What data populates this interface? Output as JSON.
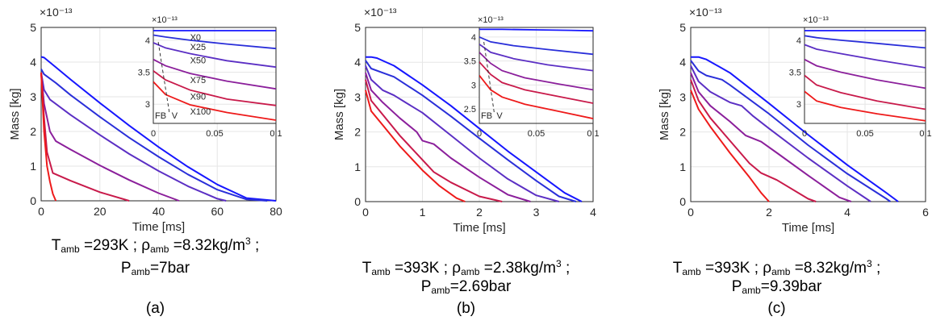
{
  "series_colors": [
    "#1616ff",
    "#2a2fd9",
    "#5b2fc4",
    "#8b1f9b",
    "#c81a4a",
    "#ee1a1a"
  ],
  "chart_data": [
    {
      "type": "line",
      "xlabel": "Time [ms]",
      "ylabel": "Mass [kg]",
      "y_exponent": "×10⁻¹³",
      "xlim": [
        0,
        80
      ],
      "ylim": [
        0,
        5
      ],
      "xticks": [
        "0",
        "20",
        "40",
        "60",
        "80"
      ],
      "yticks": [
        "0",
        "1",
        "2",
        "3",
        "4",
        "5"
      ],
      "grid": true,
      "series": [
        {
          "x": [
            0,
            1,
            5,
            10,
            20,
            30,
            40,
            50,
            60,
            70,
            80
          ],
          "y": [
            4.15,
            4.13,
            3.85,
            3.5,
            2.82,
            2.17,
            1.55,
            0.98,
            0.47,
            0.08,
            0.0
          ]
        },
        {
          "x": [
            0,
            1,
            5,
            10,
            20,
            30,
            40,
            50,
            60,
            70,
            77
          ],
          "y": [
            3.8,
            3.65,
            3.4,
            3.05,
            2.42,
            1.82,
            1.27,
            0.76,
            0.32,
            0.04,
            0.0
          ]
        },
        {
          "x": [
            0,
            1,
            3,
            10,
            20,
            30,
            40,
            50,
            60,
            63
          ],
          "y": [
            3.7,
            3.2,
            2.92,
            2.48,
            1.9,
            1.35,
            0.86,
            0.42,
            0.06,
            0.0
          ]
        },
        {
          "x": [
            0,
            1,
            3,
            5,
            10,
            20,
            30,
            40,
            47
          ],
          "y": [
            3.7,
            2.8,
            2.0,
            1.72,
            1.48,
            1.02,
            0.6,
            0.22,
            0.0
          ]
        },
        {
          "x": [
            0,
            1,
            2,
            4,
            10,
            20,
            30
          ],
          "y": [
            3.7,
            2.4,
            1.4,
            0.8,
            0.58,
            0.25,
            0.0
          ]
        },
        {
          "x": [
            0,
            1,
            2,
            3,
            4,
            5
          ],
          "y": [
            3.7,
            2.0,
            1.0,
            0.55,
            0.2,
            0.0
          ]
        }
      ],
      "inset": {
        "xlim": [
          0,
          0.1
        ],
        "ylim": [
          2.7,
          4.2
        ],
        "xticks": [
          "0",
          "0.05",
          "0.1"
        ],
        "yticks": [
          "3",
          "3.5",
          "4"
        ],
        "y_exponent": "×10⁻¹³",
        "labels": [
          "X0",
          "X25",
          "X50",
          "X75",
          "X90",
          "X100"
        ],
        "fb_label": "FB",
        "v_label": "V",
        "series": [
          {
            "x": [
              0,
              0.02,
              0.05,
              0.08,
              0.1
            ],
            "y": [
              4.15,
              4.15,
              4.15,
              4.15,
              4.15
            ]
          },
          {
            "x": [
              0,
              0.01,
              0.03,
              0.06,
              0.1
            ],
            "y": [
              4.08,
              4.05,
              4.0,
              3.94,
              3.87
            ]
          },
          {
            "x": [
              0,
              0.01,
              0.03,
              0.06,
              0.1
            ],
            "y": [
              3.96,
              3.88,
              3.79,
              3.68,
              3.58
            ]
          },
          {
            "x": [
              0,
              0.01,
              0.03,
              0.06,
              0.1
            ],
            "y": [
              3.7,
              3.6,
              3.48,
              3.36,
              3.24
            ]
          },
          {
            "x": [
              0,
              0.01,
              0.03,
              0.06,
              0.1
            ],
            "y": [
              3.52,
              3.38,
              3.22,
              3.08,
              2.98
            ]
          },
          {
            "x": [
              0,
              0.01,
              0.03,
              0.06,
              0.1
            ],
            "y": [
              3.35,
              3.15,
              2.99,
              2.87,
              2.75
            ]
          }
        ]
      },
      "caption": {
        "t_main": "T",
        "t_sub": "amb",
        "t_val": " =293K ; ρ",
        "rho_sub": "amb",
        "rho_val": " =8.32kg/m",
        "rho_sup": "3",
        "sep": " ;",
        "p_main": "P",
        "p_sub": "amb",
        "p_val": "=7bar",
        "letter": "(a)"
      }
    },
    {
      "type": "line",
      "xlabel": "Time [ms]",
      "ylabel": "Mass [kg]",
      "y_exponent": "×10⁻¹³",
      "xlim": [
        0,
        4
      ],
      "ylim": [
        0,
        5
      ],
      "xticks": [
        "0",
        "1",
        "2",
        "3",
        "4"
      ],
      "yticks": [
        "0",
        "1",
        "2",
        "3",
        "4",
        "5"
      ],
      "grid": true,
      "series": [
        {
          "x": [
            0,
            0.1,
            0.2,
            0.5,
            1.0,
            1.5,
            2.0,
            2.5,
            3.0,
            3.5,
            3.8
          ],
          "y": [
            4.15,
            4.15,
            4.12,
            3.9,
            3.35,
            2.75,
            2.1,
            1.45,
            0.85,
            0.25,
            0.0
          ]
        },
        {
          "x": [
            0,
            0.1,
            0.3,
            0.5,
            1.0,
            1.5,
            2.0,
            2.5,
            3.0,
            3.4,
            3.7
          ],
          "y": [
            4.05,
            3.82,
            3.7,
            3.58,
            3.05,
            2.45,
            1.82,
            1.2,
            0.6,
            0.15,
            0.0
          ]
        },
        {
          "x": [
            0,
            0.1,
            0.3,
            0.5,
            0.7,
            1.0,
            1.5,
            2.0,
            2.5,
            3.0,
            3.4
          ],
          "y": [
            3.9,
            3.5,
            3.2,
            3.05,
            2.85,
            2.55,
            1.9,
            1.25,
            0.65,
            0.18,
            0.0
          ]
        },
        {
          "x": [
            0,
            0.1,
            0.3,
            0.6,
            0.9,
            1.0,
            1.2,
            1.5,
            2.0,
            2.5,
            2.9
          ],
          "y": [
            3.7,
            3.2,
            2.85,
            2.4,
            2.0,
            1.75,
            1.65,
            1.25,
            0.7,
            0.2,
            0.0
          ]
        },
        {
          "x": [
            0,
            0.1,
            0.3,
            0.6,
            1.0,
            1.2,
            1.3,
            1.5,
            2.0,
            2.4
          ],
          "y": [
            3.5,
            2.9,
            2.5,
            1.9,
            1.2,
            0.85,
            0.75,
            0.55,
            0.15,
            0.0
          ]
        },
        {
          "x": [
            0,
            0.1,
            0.3,
            0.6,
            1.0,
            1.3,
            1.6,
            1.75
          ],
          "y": [
            3.2,
            2.6,
            2.2,
            1.6,
            0.9,
            0.45,
            0.1,
            0.0
          ]
        }
      ],
      "inset": {
        "xlim": [
          0,
          0.1
        ],
        "ylim": [
          2.2,
          4.2
        ],
        "xticks": [
          "0",
          "0.05",
          "0.1"
        ],
        "yticks": [
          "2.5",
          "3",
          "3.5",
          "4"
        ],
        "y_exponent": "×10⁻¹³",
        "labels": [],
        "fb_label": "FB",
        "v_label": "V",
        "series": [
          {
            "x": [
              0,
              0.02,
              0.05,
              0.08,
              0.1
            ],
            "y": [
              4.16,
              4.16,
              4.15,
              4.14,
              4.13
            ]
          },
          {
            "x": [
              0,
              0.01,
              0.03,
              0.06,
              0.1
            ],
            "y": [
              4.0,
              3.9,
              3.82,
              3.74,
              3.64
            ]
          },
          {
            "x": [
              0,
              0.01,
              0.03,
              0.06,
              0.1
            ],
            "y": [
              3.85,
              3.68,
              3.55,
              3.42,
              3.3
            ]
          },
          {
            "x": [
              0,
              0.01,
              0.02,
              0.04,
              0.07,
              0.1
            ],
            "y": [
              3.68,
              3.45,
              3.3,
              3.15,
              3.02,
              2.9
            ]
          },
          {
            "x": [
              0,
              0.01,
              0.02,
              0.04,
              0.07,
              0.1
            ],
            "y": [
              3.48,
              3.22,
              3.05,
              2.9,
              2.76,
              2.62
            ]
          },
          {
            "x": [
              0,
              0.01,
              0.02,
              0.04,
              0.07,
              0.1
            ],
            "y": [
              3.2,
              2.9,
              2.75,
              2.6,
              2.45,
              2.3
            ]
          }
        ]
      },
      "caption": {
        "t_main": "T",
        "t_sub": "amb",
        "t_val": " =393K ; ρ",
        "rho_sub": "amb",
        "rho_val": " =2.38kg/m",
        "rho_sup": "3",
        "sep": " ;",
        "p_main": "P",
        "p_sub": "amb",
        "p_val": "=2.69bar",
        "letter": "(b)"
      }
    },
    {
      "type": "line",
      "xlabel": "Time [ms]",
      "ylabel": "Mass [kg]",
      "y_exponent": "×10⁻¹³",
      "xlim": [
        0,
        6
      ],
      "ylim": [
        0,
        5
      ],
      "xticks": [
        "0",
        "2",
        "4",
        "6"
      ],
      "yticks": [
        "0",
        "1",
        "2",
        "3",
        "4",
        "5"
      ],
      "grid": true,
      "series": [
        {
          "x": [
            0,
            0.2,
            0.4,
            1.0,
            2.0,
            3.0,
            4.0,
            5.0,
            5.3
          ],
          "y": [
            4.15,
            4.15,
            4.08,
            3.7,
            2.82,
            1.92,
            1.05,
            0.25,
            0.0
          ]
        },
        {
          "x": [
            0,
            0.2,
            0.4,
            0.8,
            1.0,
            2.0,
            3.0,
            4.0,
            5.0,
            5.1
          ],
          "y": [
            4.05,
            3.75,
            3.62,
            3.5,
            3.35,
            2.52,
            1.62,
            0.8,
            0.08,
            0.0
          ]
        },
        {
          "x": [
            0,
            0.2,
            0.5,
            1.0,
            1.3,
            1.6,
            2.0,
            3.0,
            4.0,
            4.6
          ],
          "y": [
            3.9,
            3.45,
            3.15,
            2.85,
            2.75,
            2.45,
            2.1,
            1.25,
            0.45,
            0.0
          ]
        },
        {
          "x": [
            0,
            0.2,
            0.5,
            1.0,
            1.4,
            1.8,
            2.2,
            3.0,
            3.8,
            4.1
          ],
          "y": [
            3.7,
            3.15,
            2.75,
            2.3,
            1.9,
            1.72,
            1.4,
            0.75,
            0.12,
            0.0
          ]
        },
        {
          "x": [
            0,
            0.2,
            0.5,
            1.0,
            1.5,
            1.8,
            2.2,
            3.0,
            3.2
          ],
          "y": [
            3.5,
            2.9,
            2.4,
            1.75,
            1.1,
            0.82,
            0.62,
            0.08,
            0.0
          ]
        },
        {
          "x": [
            0,
            0.2,
            0.5,
            1.0,
            1.5,
            1.8,
            2.0
          ],
          "y": [
            3.2,
            2.65,
            2.15,
            1.4,
            0.7,
            0.25,
            0.0
          ]
        }
      ],
      "inset": {
        "xlim": [
          0,
          0.1
        ],
        "ylim": [
          2.7,
          4.2
        ],
        "xticks": [
          "0",
          "0.05",
          "0.1"
        ],
        "yticks": [
          "3",
          "3.5",
          "4"
        ],
        "y_exponent": "×10⁻¹³",
        "labels": [],
        "fb_label": "",
        "v_label": "",
        "series": [
          {
            "x": [
              0,
              0.02,
              0.05,
              0.08,
              0.1
            ],
            "y": [
              4.15,
              4.15,
              4.15,
              4.15,
              4.15
            ]
          },
          {
            "x": [
              0,
              0.01,
              0.03,
              0.06,
              0.1
            ],
            "y": [
              4.07,
              4.04,
              4.0,
              3.95,
              3.88
            ]
          },
          {
            "x": [
              0,
              0.01,
              0.03,
              0.06,
              0.1
            ],
            "y": [
              3.93,
              3.86,
              3.79,
              3.69,
              3.57
            ]
          },
          {
            "x": [
              0,
              0.01,
              0.03,
              0.06,
              0.1
            ],
            "y": [
              3.7,
              3.6,
              3.5,
              3.38,
              3.25
            ]
          },
          {
            "x": [
              0,
              0.01,
              0.03,
              0.06,
              0.1
            ],
            "y": [
              3.45,
              3.3,
              3.18,
              3.05,
              2.92
            ]
          },
          {
            "x": [
              0,
              0.01,
              0.03,
              0.06,
              0.1
            ],
            "y": [
              3.2,
              3.05,
              2.95,
              2.85,
              2.74
            ]
          }
        ]
      },
      "caption": {
        "t_main": "T",
        "t_sub": "amb",
        "t_val": " =393K ; ρ",
        "rho_sub": "amb",
        "rho_val": " =8.32kg/m",
        "rho_sup": "3",
        "sep": " ;",
        "p_main": "P",
        "p_sub": "amb",
        "p_val": "=9.39bar",
        "letter": "(c)"
      }
    }
  ]
}
